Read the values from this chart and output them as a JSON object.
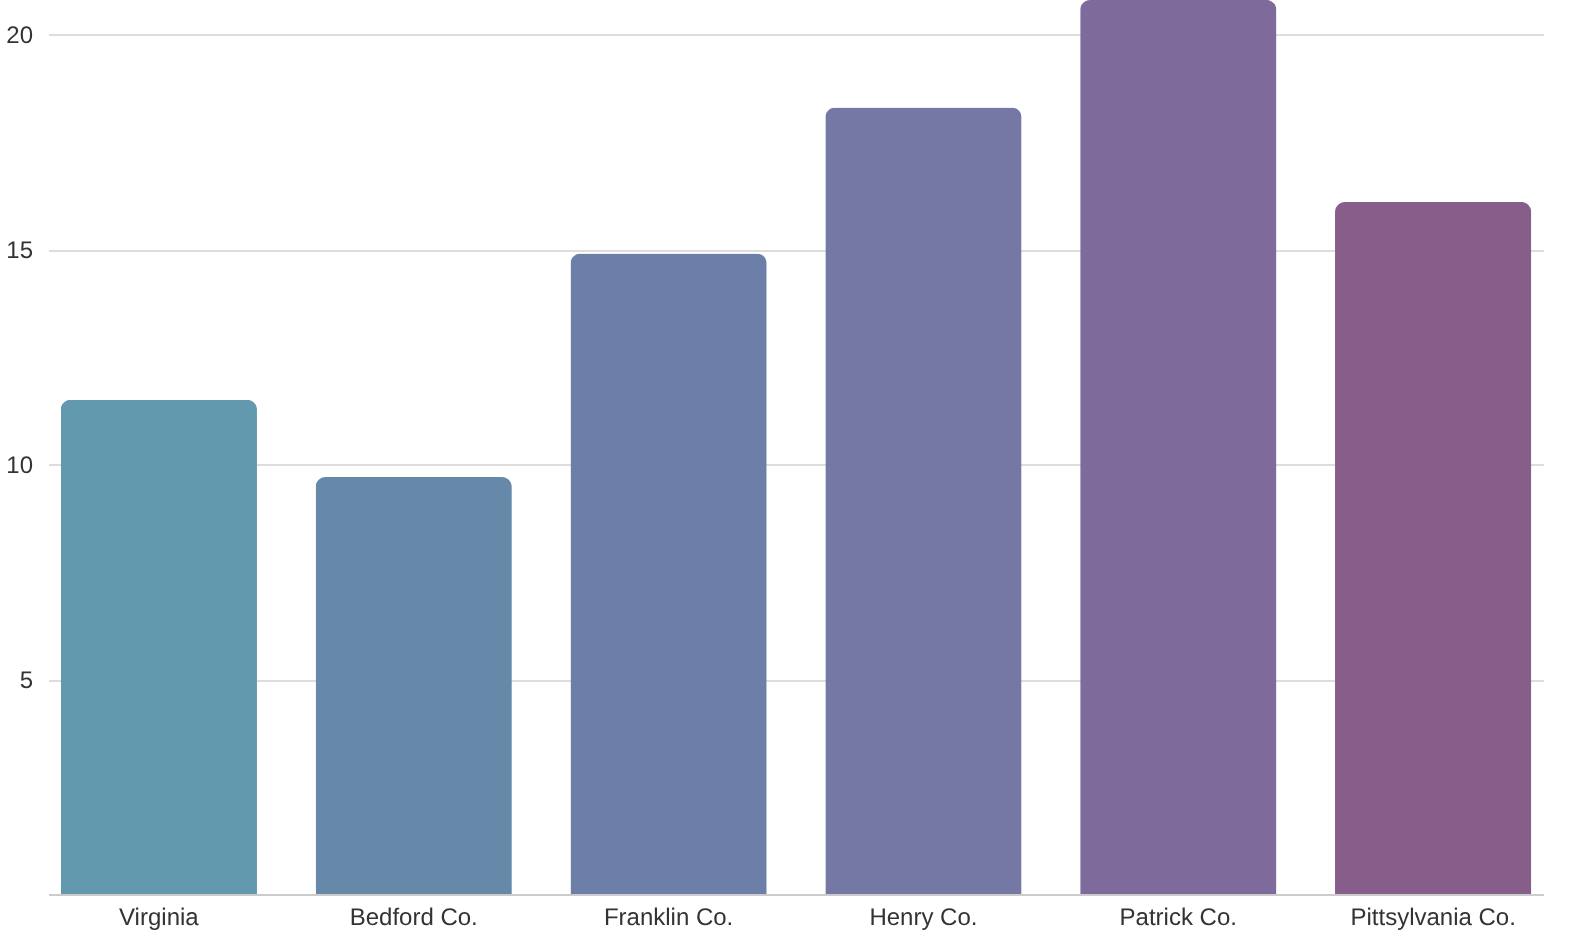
{
  "chart_data": {
    "type": "bar",
    "categories": [
      "Virginia",
      "Bedford Co.",
      "Franklin Co.",
      "Henry Co.",
      "Patrick Co.",
      "Pittsylvania Co."
    ],
    "values": [
      11.5,
      9.7,
      14.9,
      18.3,
      20.8,
      16.1
    ],
    "colors": [
      "#6399ae",
      "#6689a9",
      "#6c7fa8",
      "#7578a4",
      "#7e6b9b",
      "#875d8a"
    ],
    "ylim": [
      0,
      20.8
    ],
    "yticks": [
      5,
      10,
      15,
      20
    ],
    "grid": "y"
  }
}
